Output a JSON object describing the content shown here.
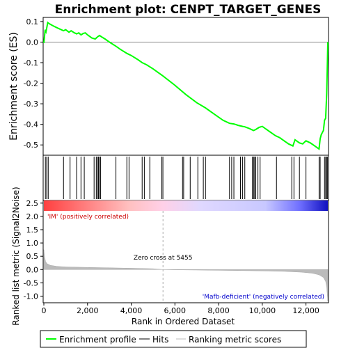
{
  "chart_data": {
    "type": "line",
    "title": "Enrichment plot: CENPT_TARGET_GENES",
    "top_panel": {
      "ylabel": "Enrichment score (ES)",
      "ylim": [
        -0.55,
        0.12
      ],
      "yticks": [
        0.1,
        0.0,
        -0.1,
        -0.2,
        -0.3,
        -0.4,
        -0.5
      ],
      "ytick_labels": [
        "0.1",
        "0.0",
        "-0.1",
        "-0.2",
        "-0.3",
        "-0.4",
        "-0.5"
      ],
      "series_name": "Enrichment profile",
      "color": "#00ff00",
      "x": [
        0,
        60,
        100,
        180,
        240,
        400,
        600,
        900,
        1000,
        1150,
        1250,
        1400,
        1500,
        1600,
        1700,
        1800,
        1900,
        2000,
        2200,
        2350,
        2450,
        2550,
        2650,
        2800,
        3000,
        3300,
        3500,
        3800,
        4000,
        4300,
        4500,
        4700,
        5000,
        5455,
        6000,
        6500,
        7000,
        7400,
        7800,
        8200,
        8500,
        8700,
        8900,
        9100,
        9200,
        9400,
        9600,
        9700,
        9850,
        10000,
        10200,
        10400,
        10600,
        10800,
        11000,
        11200,
        11400,
        11500,
        11700,
        11850,
        12000,
        12200,
        12400,
        12600,
        12650,
        12700,
        12800,
        12850,
        12900,
        12950,
        12980,
        13000
      ],
      "y": [
        -0.005,
        0.06,
        0.05,
        0.095,
        0.09,
        0.08,
        0.07,
        0.055,
        0.06,
        0.048,
        0.055,
        0.045,
        0.04,
        0.045,
        0.035,
        0.042,
        0.045,
        0.035,
        0.02,
        0.015,
        0.025,
        0.032,
        0.025,
        0.015,
        0.0,
        -0.02,
        -0.035,
        -0.055,
        -0.065,
        -0.085,
        -0.1,
        -0.11,
        -0.13,
        -0.165,
        -0.21,
        -0.255,
        -0.295,
        -0.32,
        -0.35,
        -0.38,
        -0.395,
        -0.398,
        -0.405,
        -0.41,
        -0.412,
        -0.42,
        -0.43,
        -0.425,
        -0.415,
        -0.41,
        -0.425,
        -0.44,
        -0.455,
        -0.465,
        -0.48,
        -0.495,
        -0.505,
        -0.475,
        -0.49,
        -0.495,
        -0.48,
        -0.49,
        -0.505,
        -0.52,
        -0.47,
        -0.45,
        -0.43,
        -0.38,
        -0.37,
        -0.25,
        -0.1,
        0.0
      ],
      "hits": [
        70,
        130,
        200,
        900,
        1200,
        1500,
        1700,
        1850,
        2300,
        2400,
        2450,
        2500,
        2550,
        2600,
        3300,
        3800,
        3900,
        4500,
        4600,
        4850,
        5400,
        5450,
        6350,
        6400,
        6700,
        7050,
        7300,
        7400,
        8500,
        8600,
        8700,
        9000,
        9100,
        9200,
        9550,
        9600,
        9650,
        9700,
        9800,
        9900,
        10650,
        11350,
        11450,
        11700,
        12000,
        12600,
        12650,
        12850,
        12900,
        12950,
        12980
      ]
    },
    "bottom_panel": {
      "ylabel": "Ranked list metric (Signal2Noise)",
      "xlabel": "Rank in Ordered Dataset",
      "ylim": [
        -1.25,
        2.6
      ],
      "yticks": [
        2.5,
        2.0,
        1.5,
        1.0,
        0.5,
        0.0,
        -0.5,
        -1.0
      ],
      "ytick_labels": [
        "2.5",
        "2.0",
        "1.5",
        "1.0",
        "0.5",
        "0.0",
        "-0.5",
        "-1.0"
      ],
      "xlim": [
        0,
        13000
      ],
      "xticks": [
        0,
        2000,
        4000,
        6000,
        8000,
        10000,
        12000
      ],
      "xtick_labels": [
        "0",
        "2,000",
        "4,000",
        "6,000",
        "8,000",
        "10,000",
        "12,000"
      ],
      "metric_x": [
        0,
        30,
        80,
        150,
        300,
        600,
        1000,
        2000,
        3000,
        4000,
        5000,
        5455,
        6000,
        7000,
        8000,
        9000,
        10000,
        11000,
        11800,
        12300,
        12600,
        12800,
        12900,
        12950,
        13000
      ],
      "metric_y": [
        0.75,
        0.5,
        0.3,
        0.22,
        0.16,
        0.12,
        0.1,
        0.08,
        0.065,
        0.05,
        0.03,
        0.0,
        -0.01,
        -0.02,
        -0.03,
        -0.04,
        -0.05,
        -0.07,
        -0.1,
        -0.14,
        -0.2,
        -0.3,
        -0.45,
        -0.65,
        -1.2
      ],
      "zero_cross_label": "Zero cross at 5455",
      "zero_cross_x": 5455,
      "positive_label": "'IM' (positively correlated)",
      "negative_label": "'Mafb-deficient' (negatively correlated)"
    },
    "legend": [
      {
        "label": "Enrichment profile",
        "color": "#00ff00"
      },
      {
        "label": "Hits",
        "color": "#000000"
      },
      {
        "label": "Ranking metric scores",
        "color": "#bbbbbb"
      }
    ],
    "legend_position": "bottom"
  }
}
